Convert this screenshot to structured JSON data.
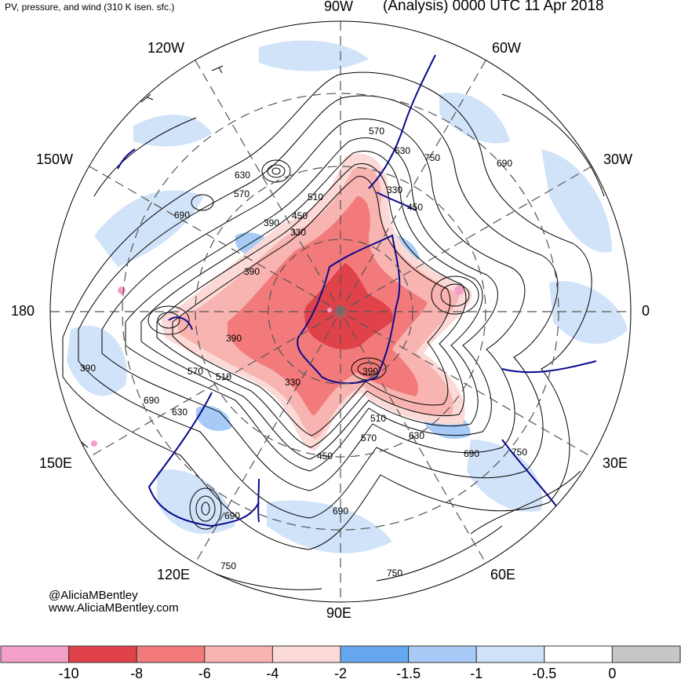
{
  "header": {
    "title_left": "PV, pressure, and wind (310 K isen. sfc.)",
    "title_right": "(Analysis) 0000 UTC 11 Apr 2018"
  },
  "map": {
    "projection": "south-polar-stereographic",
    "longitude_labels": {
      "top": "90W",
      "upper_left_1": "120W",
      "upper_left_2": "150W",
      "left": "180",
      "lower_left_1": "150E",
      "lower_left_2": "120E",
      "bottom": "90E",
      "lower_right_1": "60E",
      "lower_right_2": "30E",
      "right": "0",
      "upper_right_1": "30W",
      "upper_right_2": "60W"
    },
    "contour_labels": [
      "570",
      "630",
      "750",
      "690",
      "630",
      "570",
      "510",
      "450",
      "390",
      "330",
      "390",
      "450",
      "390",
      "330",
      "390",
      "510",
      "570",
      "690",
      "630",
      "630",
      "690",
      "570",
      "510",
      "450",
      "330",
      "390",
      "690",
      "750",
      "690",
      "750",
      "690",
      "750"
    ],
    "colors": {
      "pv_strong": "#e0424a",
      "pv_mid": "#f37a7a",
      "pv_weak": "#f8b4b0",
      "pv_faint": "#fbd9d6",
      "blue_strong": "#66a8f0",
      "blue_mid": "#a7cbf6",
      "blue_light": "#cfe2f8",
      "coast": "#0a0a8c",
      "contour": "#000000",
      "grid": "#555555"
    }
  },
  "credits": {
    "handle": "@AliciaMBentley",
    "website": "www.AliciaMBentley.com"
  },
  "colorbar": {
    "swatches": [
      {
        "color": "#f49fc8"
      },
      {
        "color": "#e0424a"
      },
      {
        "color": "#f37a7a"
      },
      {
        "color": "#f8b4b0"
      },
      {
        "color": "#fbd9d6"
      },
      {
        "color": "#66a8f0"
      },
      {
        "color": "#a7cbf6"
      },
      {
        "color": "#cfe2f8"
      },
      {
        "color": "#ffffff"
      },
      {
        "color": "#c6c6c6"
      }
    ],
    "ticks": [
      "-10",
      "-8",
      "-6",
      "-4",
      "-2",
      "-1.5",
      "-1",
      "-0.5",
      "0"
    ]
  }
}
